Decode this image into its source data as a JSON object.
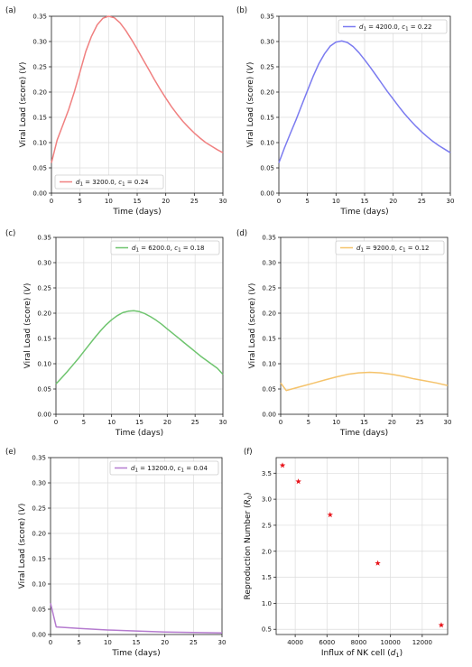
{
  "chart_data": [
    {
      "type": "line",
      "panel_label": "(a)",
      "xlabel": "Time (days)",
      "ylabel": "Viral Load (score) (V)",
      "xlim": [
        0,
        30
      ],
      "ylim": [
        0,
        0.35
      ],
      "xticks": [
        0,
        5,
        10,
        15,
        20,
        25,
        30
      ],
      "yticks": [
        0.0,
        0.05,
        0.1,
        0.15,
        0.2,
        0.25,
        0.3,
        0.35
      ],
      "legend": {
        "location": "lower left",
        "d1": "3200.0",
        "c1": "0.24"
      },
      "series": [
        {
          "color": "#f08080",
          "x": [
            0,
            1,
            2,
            3,
            4,
            5,
            6,
            7,
            8,
            9,
            10,
            11,
            12,
            13,
            14,
            15,
            16,
            17,
            18,
            19,
            20,
            21,
            22,
            23,
            24,
            25,
            26,
            27,
            28,
            29,
            30
          ],
          "y": [
            0.06,
            0.105,
            0.135,
            0.165,
            0.2,
            0.24,
            0.28,
            0.31,
            0.333,
            0.346,
            0.35,
            0.347,
            0.337,
            0.322,
            0.304,
            0.285,
            0.265,
            0.245,
            0.225,
            0.206,
            0.188,
            0.171,
            0.156,
            0.142,
            0.13,
            0.119,
            0.109,
            0.1,
            0.093,
            0.086,
            0.08
          ]
        }
      ]
    },
    {
      "type": "line",
      "panel_label": "(b)",
      "xlabel": "Time (days)",
      "ylabel": "Viral Load (score) (V)",
      "xlim": [
        0,
        30
      ],
      "ylim": [
        0,
        0.35
      ],
      "xticks": [
        0,
        5,
        10,
        15,
        20,
        25,
        30
      ],
      "yticks": [
        0.0,
        0.05,
        0.1,
        0.15,
        0.2,
        0.25,
        0.3,
        0.35
      ],
      "legend": {
        "location": "upper right",
        "d1": "4200.0",
        "c1": "0.22"
      },
      "series": [
        {
          "color": "#7b7bf0",
          "x": [
            0,
            1,
            2,
            3,
            4,
            5,
            6,
            7,
            8,
            9,
            10,
            11,
            12,
            13,
            14,
            15,
            16,
            17,
            18,
            19,
            20,
            21,
            22,
            23,
            24,
            25,
            26,
            27,
            28,
            29,
            30
          ],
          "y": [
            0.06,
            0.09,
            0.118,
            0.145,
            0.174,
            0.203,
            0.231,
            0.256,
            0.276,
            0.291,
            0.299,
            0.301,
            0.298,
            0.29,
            0.278,
            0.264,
            0.249,
            0.233,
            0.217,
            0.201,
            0.186,
            0.171,
            0.157,
            0.144,
            0.132,
            0.121,
            0.111,
            0.102,
            0.094,
            0.087,
            0.08
          ]
        }
      ]
    },
    {
      "type": "line",
      "panel_label": "(c)",
      "xlabel": "Time (days)",
      "ylabel": "Viral Load (score) (V)",
      "xlim": [
        0,
        30
      ],
      "ylim": [
        0,
        0.35
      ],
      "xticks": [
        0,
        5,
        10,
        15,
        20,
        25,
        30
      ],
      "yticks": [
        0.0,
        0.05,
        0.1,
        0.15,
        0.2,
        0.25,
        0.3,
        0.35
      ],
      "legend": {
        "location": "upper right",
        "d1": "6200.0",
        "c1": "0.18"
      },
      "series": [
        {
          "color": "#6ec46e",
          "x": [
            0,
            1,
            2,
            3,
            4,
            5,
            6,
            7,
            8,
            9,
            10,
            11,
            12,
            13,
            14,
            15,
            16,
            17,
            18,
            19,
            20,
            21,
            22,
            23,
            24,
            25,
            26,
            27,
            28,
            29,
            30
          ],
          "y": [
            0.06,
            0.072,
            0.084,
            0.097,
            0.11,
            0.124,
            0.138,
            0.152,
            0.165,
            0.177,
            0.187,
            0.195,
            0.201,
            0.204,
            0.205,
            0.203,
            0.199,
            0.193,
            0.186,
            0.178,
            0.169,
            0.16,
            0.151,
            0.142,
            0.133,
            0.124,
            0.115,
            0.107,
            0.099,
            0.091,
            0.079
          ]
        }
      ]
    },
    {
      "type": "line",
      "panel_label": "(d)",
      "xlabel": "Time (days)",
      "ylabel": "Viral Load (score) (V)",
      "xlim": [
        0,
        30
      ],
      "ylim": [
        0,
        0.35
      ],
      "xticks": [
        0,
        5,
        10,
        15,
        20,
        25,
        30
      ],
      "yticks": [
        0.0,
        0.05,
        0.1,
        0.15,
        0.2,
        0.25,
        0.3,
        0.35
      ],
      "legend": {
        "location": "upper right",
        "d1": "9200.0",
        "c1": "0.12"
      },
      "series": [
        {
          "color": "#f5c36b",
          "x": [
            0,
            1,
            2,
            4,
            6,
            8,
            10,
            12,
            14,
            16,
            18,
            20,
            22,
            24,
            26,
            28,
            30
          ],
          "y": [
            0.062,
            0.047,
            0.05,
            0.056,
            0.062,
            0.068,
            0.074,
            0.079,
            0.082,
            0.083,
            0.082,
            0.079,
            0.075,
            0.07,
            0.066,
            0.062,
            0.057
          ]
        }
      ]
    },
    {
      "type": "line",
      "panel_label": "(e)",
      "xlabel": "Time (days)",
      "ylabel": "Viral Load (score) (V)",
      "xlim": [
        0,
        30
      ],
      "ylim": [
        0,
        0.35
      ],
      "xticks": [
        0,
        5,
        10,
        15,
        20,
        25,
        30
      ],
      "yticks": [
        0.0,
        0.05,
        0.1,
        0.15,
        0.2,
        0.25,
        0.3,
        0.35
      ],
      "legend": {
        "location": "upper right",
        "d1": "13200.0",
        "c1": "0.04"
      },
      "series": [
        {
          "color": "#b57bcf",
          "x": [
            0,
            1,
            5,
            10,
            15,
            20,
            25,
            30
          ],
          "y": [
            0.062,
            0.015,
            0.012,
            0.009,
            0.007,
            0.005,
            0.004,
            0.003
          ]
        }
      ]
    },
    {
      "type": "scatter",
      "panel_label": "(f)",
      "xlabel": "Influx of NK cell (d1)",
      "ylabel": "Reproduction Number (R0)",
      "xlim": [
        2800,
        13600
      ],
      "ylim": [
        0.4,
        3.8
      ],
      "xticks": [
        4000,
        6000,
        8000,
        10000,
        12000
      ],
      "yticks": [
        0.5,
        1.0,
        1.5,
        2.0,
        2.5,
        3.0,
        3.5
      ],
      "marker": "star",
      "series": [
        {
          "color": "#e8141b",
          "x": [
            3200,
            4200,
            6200,
            9200,
            13200
          ],
          "y": [
            3.65,
            3.34,
            2.7,
            1.77,
            0.58
          ]
        }
      ]
    }
  ]
}
